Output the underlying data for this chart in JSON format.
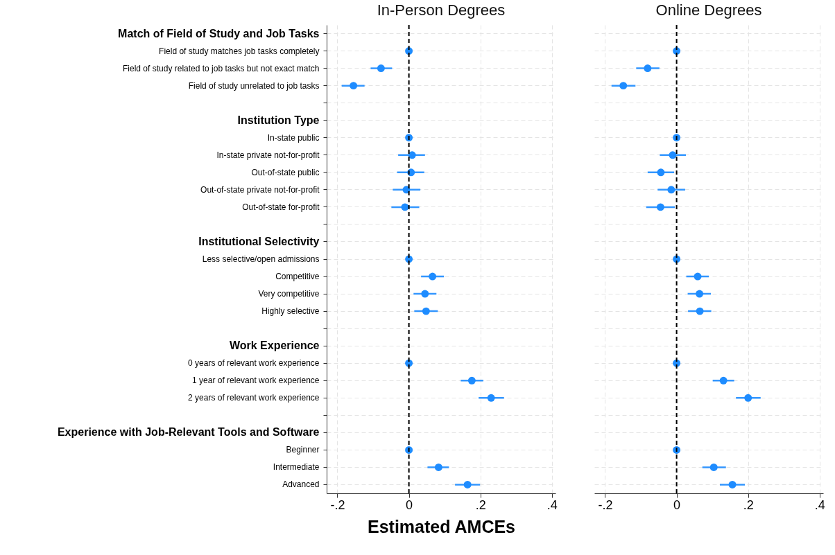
{
  "chart_data": [
    {
      "type": "scatter",
      "title": "In-Person Degrees",
      "xlabel": "Estimated AMCEs",
      "categories": [
        "Match of Field of Study and Job Tasks",
        "Field of study matches job tasks completely",
        "Field of study related to job tasks but not exact match",
        "Field of study unrelated to job tasks",
        null,
        "Institution Type",
        "In-state public",
        "In-state private not-for-profit",
        "Out-of-state public",
        "Out-of-state private not-for-profit",
        "Out-of-state for-profit",
        null,
        "Institutional Selectivity",
        "Less selective/open admissions",
        "Competitive",
        "Very competitive",
        "Highly selective",
        null,
        "Work Experience",
        "0 years of relevant work experience",
        "1 year of relevant work experience",
        "2 years of relevant work experience",
        null,
        "Experience with Job-Relevant Tools and Software",
        "Beginner",
        "Intermediate",
        "Advanced"
      ],
      "orientation": "horizontal",
      "series": [
        {
          "color": "#1e8cff",
          "values": [
            null,
            0,
            -0.078,
            -0.155,
            null,
            null,
            0,
            0.009,
            0.006,
            -0.007,
            -0.011,
            null,
            null,
            0,
            0.066,
            0.045,
            0.048,
            null,
            null,
            0,
            0.176,
            0.23,
            null,
            null,
            0,
            0.083,
            0.164
          ],
          "errors": [
            null,
            null,
            [
              -0.107,
              -0.047
            ],
            [
              -0.188,
              -0.124
            ],
            null,
            null,
            null,
            [
              -0.03,
              0.045
            ],
            [
              -0.033,
              0.043
            ],
            [
              -0.045,
              0.032
            ],
            [
              -0.049,
              0.029
            ],
            null,
            null,
            null,
            [
              0.034,
              0.098
            ],
            [
              0.013,
              0.077
            ],
            [
              0.015,
              0.081
            ],
            null,
            null,
            null,
            [
              0.145,
              0.208
            ],
            [
              0.195,
              0.266
            ],
            null,
            null,
            null,
            [
              0.052,
              0.112
            ],
            [
              0.129,
              0.199
            ]
          ]
        }
      ],
      "xlim": [
        -0.23,
        0.41
      ],
      "xticks": [
        {
          "value": -0.2,
          "label": "-.2"
        },
        0,
        {
          "value": 0.2,
          "label": ".2"
        },
        {
          "value": 0.4,
          "label": ".4"
        }
      ],
      "ref_lines": [
        {
          "axis": "x",
          "value": 0,
          "color": "#000000",
          "line_style": "dashed"
        }
      ],
      "grid": true,
      "marker": "circle"
    },
    {
      "type": "scatter",
      "title": "Online Degrees",
      "categories": [
        null,
        null,
        null,
        null,
        null,
        null,
        null,
        null,
        null,
        null,
        null,
        null,
        null,
        null,
        null,
        null,
        null,
        null,
        null,
        null,
        null,
        null,
        null,
        null,
        null,
        null,
        null
      ],
      "orientation": "horizontal",
      "series": [
        {
          "color": "#1e8cff",
          "values": [
            null,
            0,
            -0.081,
            -0.149,
            null,
            null,
            0,
            -0.011,
            -0.044,
            -0.015,
            -0.045,
            null,
            null,
            0,
            0.059,
            0.064,
            0.065,
            null,
            null,
            0,
            0.131,
            0.2,
            null,
            null,
            0,
            0.104,
            0.156
          ],
          "errors": [
            null,
            null,
            [
              -0.113,
              -0.048
            ],
            [
              -0.182,
              -0.115
            ],
            null,
            null,
            null,
            [
              -0.047,
              0.026
            ],
            [
              -0.081,
              -0.007
            ],
            [
              -0.053,
              0.024
            ],
            [
              -0.085,
              -0.005
            ],
            null,
            null,
            null,
            [
              0.027,
              0.09
            ],
            [
              0.031,
              0.096
            ],
            [
              0.032,
              0.097
            ],
            null,
            null,
            null,
            [
              0.101,
              0.161
            ],
            [
              0.166,
              0.235
            ],
            null,
            null,
            null,
            [
              0.072,
              0.138
            ],
            [
              0.121,
              0.191
            ]
          ]
        }
      ],
      "xlim": [
        -0.23,
        0.41
      ],
      "xticks": [
        {
          "value": -0.2,
          "label": "-.2"
        },
        0,
        {
          "value": 0.2,
          "label": ".2"
        },
        {
          "value": 0.4,
          "label": ".4"
        }
      ],
      "ref_lines": [
        {
          "axis": "x",
          "value": 0,
          "color": "#000000",
          "line_style": "dashed"
        }
      ],
      "grid": true,
      "marker": "circle",
      "tick_labels": "x"
    }
  ]
}
